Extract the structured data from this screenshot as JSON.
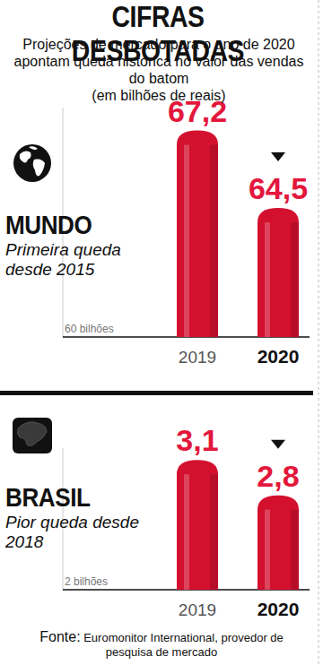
{
  "title": "CIFRAS DESBOTADAS",
  "subtitle": "Projeções de mercado para o ano de 2020 apontam queda histórica no valor das vendas do batom",
  "unit": "(em bilhões de reais)",
  "source_label": "Fonte:",
  "source": "Euromonitor International, provedor de pesquisa de mercado",
  "chart_data": [
    {
      "type": "bar",
      "title": "MUNDO",
      "subtitle": "Primeira queda desde 2015",
      "categories": [
        "2019",
        "2020"
      ],
      "values": [
        67.2,
        64.5
      ],
      "value_labels": [
        "67,2",
        "64,5"
      ],
      "color": "#d3112f",
      "data_labels": true,
      "ylim": [
        60,
        68
      ],
      "yticks": [
        {
          "value": 60,
          "label": "60 bilhões"
        }
      ]
    },
    {
      "type": "bar",
      "title": "BRASIL",
      "subtitle": "Pior queda desde 2018",
      "categories": [
        "2019",
        "2020"
      ],
      "values": [
        3.1,
        2.8
      ],
      "value_labels": [
        "3,1",
        "2,8"
      ],
      "color": "#d3112f",
      "data_labels": true,
      "ylim": [
        2,
        3.2
      ],
      "yticks": [
        {
          "value": 2,
          "label": "2 bilhões"
        }
      ]
    }
  ]
}
